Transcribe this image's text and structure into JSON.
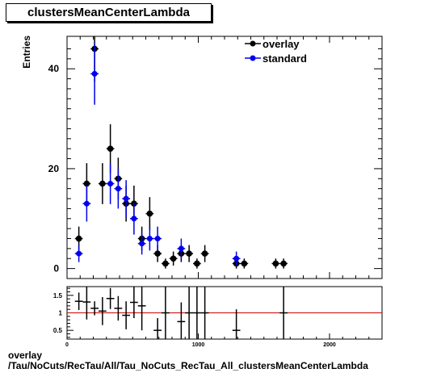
{
  "title": "clustersMeanCenterLambda",
  "footer": {
    "line1": "overlay",
    "line2": "/Tau/NoCuts/RecTau/All/Tau_NoCuts_RecTau_All_clustersMeanCenterLambda"
  },
  "chart_data": [
    {
      "type": "scatter",
      "ylabel": "Entries",
      "xlim": [
        0,
        2400
      ],
      "ylim": [
        -2,
        46.5
      ],
      "yticks": [
        0,
        20,
        40
      ],
      "xbin_width": 60,
      "legend_position": "top-right",
      "series": [
        {
          "name": "overlay",
          "color": "#000000",
          "points": [
            {
              "x": 90,
              "y": 6,
              "err": 2.4
            },
            {
              "x": 150,
              "y": 17,
              "err": 4.1
            },
            {
              "x": 210,
              "y": 44,
              "err": 6.6
            },
            {
              "x": 270,
              "y": 17,
              "err": 4.1
            },
            {
              "x": 330,
              "y": 24,
              "err": 4.9
            },
            {
              "x": 390,
              "y": 18,
              "err": 4.2
            },
            {
              "x": 450,
              "y": 13,
              "err": 3.6
            },
            {
              "x": 510,
              "y": 13,
              "err": 3.6
            },
            {
              "x": 570,
              "y": 6,
              "err": 2.4
            },
            {
              "x": 630,
              "y": 11,
              "err": 3.3
            },
            {
              "x": 690,
              "y": 3,
              "err": 1.7
            },
            {
              "x": 750,
              "y": 1,
              "err": 1.0
            },
            {
              "x": 810,
              "y": 2,
              "err": 1.4
            },
            {
              "x": 870,
              "y": 3,
              "err": 1.7
            },
            {
              "x": 930,
              "y": 3,
              "err": 1.7
            },
            {
              "x": 990,
              "y": 1,
              "err": 1.0
            },
            {
              "x": 1050,
              "y": 3,
              "err": 1.7
            },
            {
              "x": 1290,
              "y": 1,
              "err": 1.0
            },
            {
              "x": 1350,
              "y": 1,
              "err": 1.0
            },
            {
              "x": 1590,
              "y": 1,
              "err": 1.0
            },
            {
              "x": 1650,
              "y": 1,
              "err": 1.0
            }
          ]
        },
        {
          "name": "standard",
          "color": "#0000ee",
          "points": [
            {
              "x": 90,
              "y": 3,
              "err": 1.7
            },
            {
              "x": 150,
              "y": 13,
              "err": 3.6
            },
            {
              "x": 210,
              "y": 39,
              "err": 6.2
            },
            {
              "x": 330,
              "y": 17,
              "err": 4.1
            },
            {
              "x": 390,
              "y": 16,
              "err": 4.0
            },
            {
              "x": 450,
              "y": 14,
              "err": 3.7
            },
            {
              "x": 510,
              "y": 10,
              "err": 3.2
            },
            {
              "x": 570,
              "y": 5,
              "err": 2.2
            },
            {
              "x": 630,
              "y": 6,
              "err": 2.4
            },
            {
              "x": 690,
              "y": 6,
              "err": 2.4
            },
            {
              "x": 870,
              "y": 4,
              "err": 2.0
            },
            {
              "x": 1290,
              "y": 2,
              "err": 1.4
            }
          ]
        }
      ]
    },
    {
      "type": "scatter",
      "xlim": [
        0,
        2400
      ],
      "ylim": [
        0.25,
        1.75
      ],
      "yticks": [
        0.5,
        1,
        1.5
      ],
      "xticks": [
        0,
        1000,
        2000
      ],
      "reference_line": {
        "y": 1,
        "color": "#cc0000"
      },
      "series": [
        {
          "name": "",
          "color": "#000000",
          "points": [
            {
              "x": 90,
              "y": 1.33,
              "err": 0.25
            },
            {
              "x": 150,
              "y": 1.31,
              "err": 0.5
            },
            {
              "x": 210,
              "y": 1.13,
              "err": 0.2
            },
            {
              "x": 270,
              "y": 1.05,
              "err": 0.4
            },
            {
              "x": 330,
              "y": 1.41,
              "err": 0.3
            },
            {
              "x": 390,
              "y": 1.13,
              "err": 0.35
            },
            {
              "x": 450,
              "y": 0.93,
              "err": 0.4
            },
            {
              "x": 510,
              "y": 1.3,
              "err": 0.45
            },
            {
              "x": 570,
              "y": 1.2,
              "err": 0.7
            },
            {
              "x": 690,
              "y": 0.5,
              "err": 0.35
            },
            {
              "x": 750,
              "y": 1.0,
              "err": 1.0
            },
            {
              "x": 870,
              "y": 0.75,
              "err": 0.55
            },
            {
              "x": 930,
              "y": 1.0,
              "err": 1.0
            },
            {
              "x": 990,
              "y": 1.0,
              "err": 1.0
            },
            {
              "x": 1050,
              "y": 1.0,
              "err": 1.0
            },
            {
              "x": 1290,
              "y": 0.5,
              "err": 0.6
            },
            {
              "x": 1650,
              "y": 1.0,
              "err": 1.0
            }
          ]
        }
      ]
    }
  ]
}
